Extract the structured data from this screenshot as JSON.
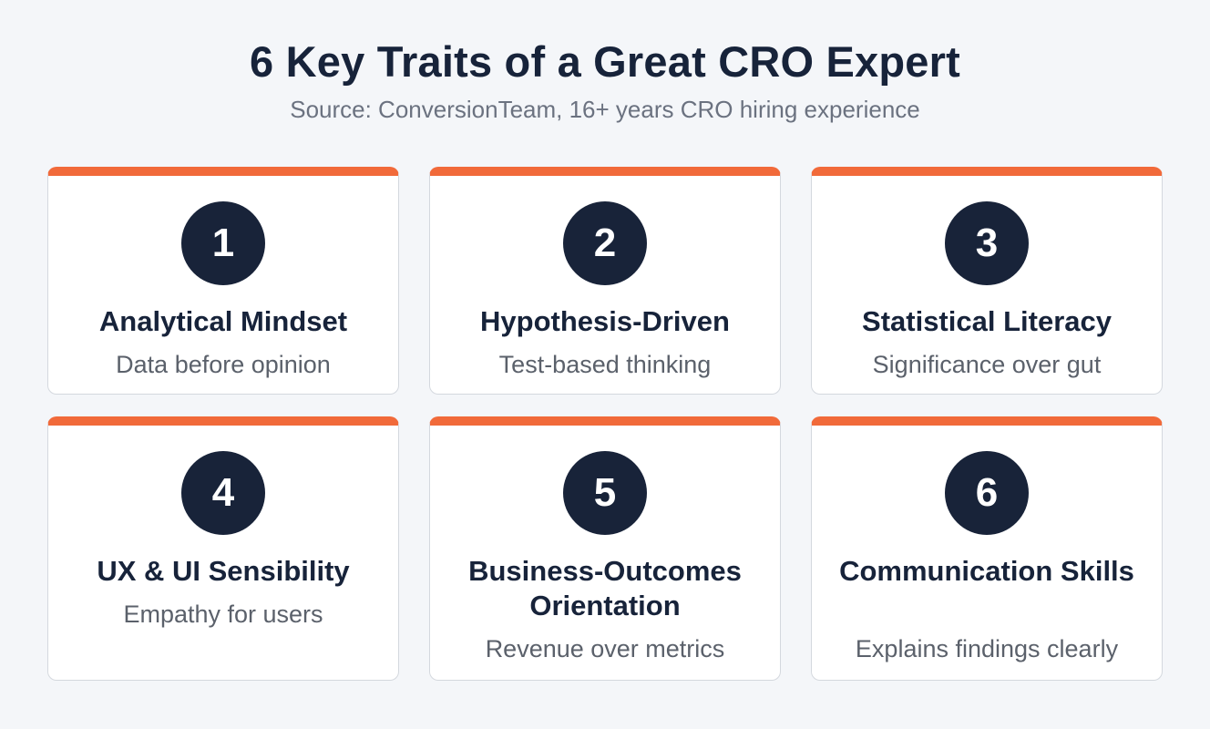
{
  "header": {
    "title": "6 Key Traits of a Great CRO Expert",
    "subtitle": "Source: ConversionTeam, 16+ years CRO hiring experience"
  },
  "traits": [
    {
      "number": "1",
      "title": "Analytical Mindset",
      "description": "Data before opinion"
    },
    {
      "number": "2",
      "title": "Hypothesis-Driven",
      "description": "Test-based thinking"
    },
    {
      "number": "3",
      "title": "Statistical Literacy",
      "description": "Significance over gut"
    },
    {
      "number": "4",
      "title": "UX & UI Sensibility",
      "description": "Empathy for users"
    },
    {
      "number": "5",
      "title": "Business-Outcomes Orientation",
      "description": "Revenue over metrics"
    },
    {
      "number": "6",
      "title": "Communication Skills",
      "description": "Explains findings clearly"
    }
  ],
  "colors": {
    "accent": "#f16a3a",
    "badge": "#182339",
    "title": "#17233a",
    "muted": "#5b616b",
    "background": "#f4f6f9"
  }
}
